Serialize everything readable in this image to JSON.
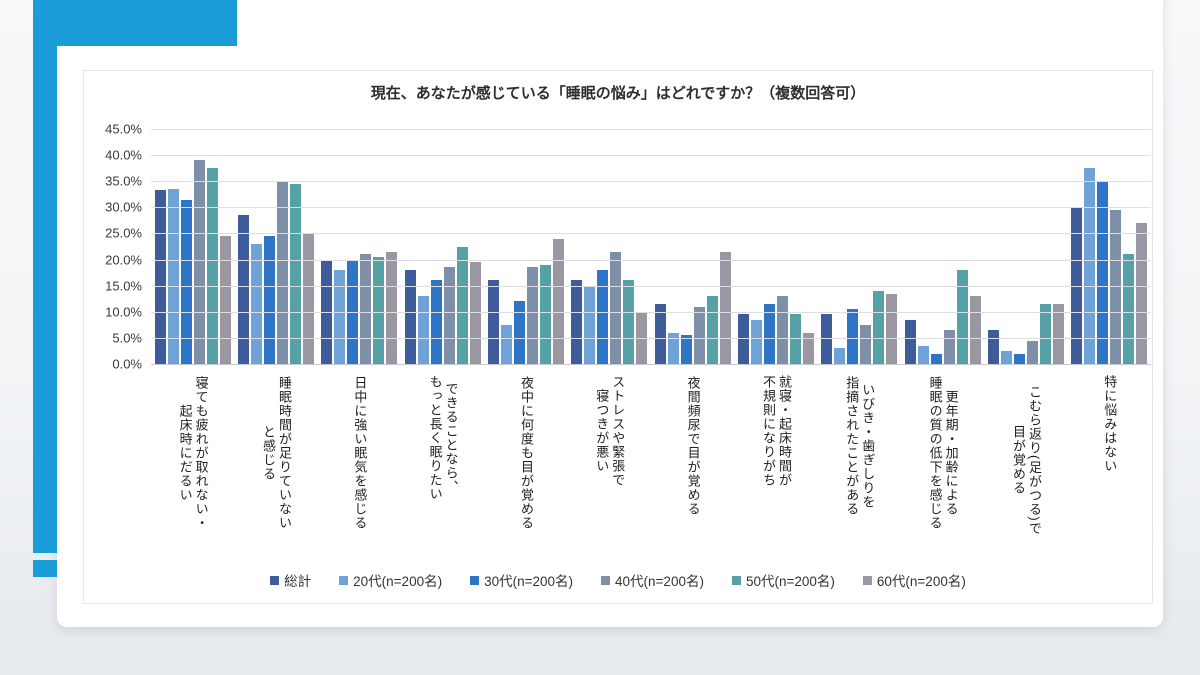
{
  "decor": {
    "accent_color": "#1a9cd8"
  },
  "chart_data": {
    "type": "bar",
    "title": "現在、あなたが感じている「睡眠の悩み」はどれですか？（複数回答可）",
    "xlabel": "",
    "ylabel": "",
    "ylim": [
      0,
      45
    ],
    "grid": true,
    "legend_position": "bottom",
    "y_ticks": [
      "45.0%",
      "40.0%",
      "35.0%",
      "30.0%",
      "25.0%",
      "20.0%",
      "15.0%",
      "10.0%",
      "5.0%",
      "0.0%"
    ],
    "categories": [
      "寝ても疲れが取れない・起床時にだるい",
      "睡眠時間が足りていないと感じる",
      "日中に強い眠気を感じる",
      "できることなら、もっと長く眠りたい",
      "夜中に何度も目が覚める",
      "ストレスや緊張で寝つきが悪い",
      "夜間頻尿で目が覚める",
      "就寝・起床時間が不規則になりがち",
      "いびき・歯ぎしりを指摘されたことがある",
      "更年期・加齢による睡眠の質の低下を感じる",
      "こむら返り(足がつる)で目が覚める",
      "特に悩みはない"
    ],
    "category_lines": [
      [
        "寝ても疲れが取れない・",
        "起床時にだるい"
      ],
      [
        "睡眠時間が足りていない",
        "と感じる"
      ],
      [
        "日中に強い眠気を感じる"
      ],
      [
        "できることなら、",
        "もっと長く眠りたい"
      ],
      [
        "夜中に何度も目が覚める"
      ],
      [
        "ストレスや緊張で",
        "寝つきが悪い"
      ],
      [
        "夜間頻尿で目が覚める"
      ],
      [
        "就寝・起床時間が",
        "不規則になりがち"
      ],
      [
        "いびき・歯ぎしりを",
        "指摘されたことがある"
      ],
      [
        "更年期・加齢による",
        "睡眠の質の低下を感じる"
      ],
      [
        "こむら返り(足がつる)で",
        "目が覚める"
      ],
      [
        "特に悩みはない"
      ]
    ],
    "series": [
      {
        "name": "総計",
        "color": "#3e5c99",
        "values": [
          33.3,
          28.5,
          20.0,
          18.0,
          16.0,
          16.0,
          11.5,
          9.5,
          9.5,
          8.5,
          6.5,
          30.0
        ]
      },
      {
        "name": "20代(n=200名)",
        "color": "#6fa3d8",
        "values": [
          33.5,
          23.0,
          18.0,
          13.0,
          7.5,
          15.0,
          6.0,
          8.5,
          3.0,
          3.5,
          2.5,
          37.5
        ]
      },
      {
        "name": "30代(n=200名)",
        "color": "#2e75c8",
        "values": [
          31.5,
          24.5,
          20.0,
          16.0,
          12.0,
          18.0,
          5.5,
          11.5,
          10.5,
          2.0,
          2.0,
          35.0
        ]
      },
      {
        "name": "40代(n=200名)",
        "color": "#7e90a8",
        "values": [
          39.0,
          35.0,
          21.0,
          18.5,
          18.5,
          21.5,
          11.0,
          13.0,
          7.5,
          6.5,
          4.5,
          29.5
        ]
      },
      {
        "name": "50代(n=200名)",
        "color": "#55a1a6",
        "values": [
          37.5,
          34.5,
          20.5,
          22.5,
          19.0,
          16.0,
          13.0,
          9.5,
          14.0,
          18.0,
          11.5,
          21.0
        ]
      },
      {
        "name": "60代(n=200名)",
        "color": "#9a96a2",
        "values": [
          24.5,
          25.0,
          21.5,
          19.5,
          24.0,
          10.0,
          21.5,
          6.0,
          13.5,
          13.0,
          11.5,
          27.0
        ]
      }
    ]
  }
}
